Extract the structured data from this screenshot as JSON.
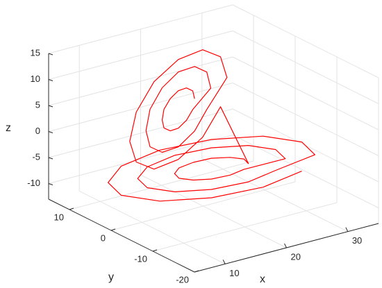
{
  "chart_data": {
    "type": "line3d",
    "xlabel": "x",
    "ylabel": "y",
    "zlabel": "z",
    "xlim": [
      5,
      35
    ],
    "ylim": [
      -20,
      15
    ],
    "zlim": [
      -13,
      15
    ],
    "xticks": [
      10,
      20,
      30
    ],
    "yticks": [
      -20,
      -10,
      0,
      10
    ],
    "zticks": [
      -10,
      -5,
      0,
      5,
      10,
      15
    ],
    "grid": true,
    "color": "#ff0000",
    "x": [
      22,
      21.5,
      20,
      18,
      16,
      14.5,
      14,
      14.5,
      16,
      18,
      20,
      21.5,
      26,
      25,
      22,
      18,
      14,
      11,
      10,
      11,
      14,
      18,
      22,
      25,
      30,
      28.4,
      24,
      18,
      12,
      7.6,
      6,
      7.6,
      12,
      18,
      24,
      28.4,
      25,
      24.4,
      22.5,
      20,
      17.5,
      15.6,
      15,
      15.6,
      17.5,
      20,
      22.5,
      24.4,
      30,
      28.7,
      25,
      20,
      15,
      11.3,
      10,
      11.3,
      15,
      20,
      25,
      28.7,
      34,
      32.2,
      27,
      20,
      13,
      7.8,
      6,
      7.8,
      13,
      20,
      27,
      32.2
    ],
    "y": [
      5,
      4.7,
      4,
      3,
      2,
      1.3,
      1,
      1.3,
      2,
      3,
      4,
      4.7,
      7,
      6.5,
      5,
      3,
      1,
      -0.5,
      -1,
      -0.5,
      1,
      3,
      5,
      6.5,
      9,
      8.2,
      6,
      3,
      0,
      -2.2,
      -3,
      -2.2,
      0,
      3,
      6,
      8.2,
      -3.5,
      -3.3,
      -2.8,
      -2,
      -1.3,
      -0.7,
      -0.5,
      -0.7,
      -1.3,
      -2,
      -2.8,
      -3.3,
      -5,
      -4.6,
      -3.5,
      -2,
      -0.5,
      0.6,
      1,
      0.6,
      -0.5,
      -2,
      -3.5,
      -4.6,
      -6.2,
      -5.7,
      -4.1,
      -2,
      0.1,
      1.7,
      2.2,
      1.7,
      0.1,
      -2,
      -4.1,
      -5.7
    ],
    "z": [
      5,
      6.8,
      8.1,
      8.6,
      8.1,
      6.8,
      5,
      3.2,
      1.9,
      1.4,
      1.9,
      3.2,
      5,
      8.6,
      11.2,
      12.2,
      11.2,
      8.6,
      5,
      1.4,
      -1.2,
      -2.2,
      -1.2,
      1.4,
      5,
      9.8,
      13.4,
      14.6,
      13.4,
      9.8,
      5,
      0.2,
      -3.4,
      -4.6,
      -3.4,
      0.2,
      -5,
      -4,
      -3.3,
      -3,
      -3.3,
      -4,
      -5,
      -6,
      -6.7,
      -7,
      -6.7,
      -6,
      -5,
      -3,
      -1.5,
      -1,
      -1.5,
      -3,
      -5,
      -7,
      -8.5,
      -9,
      -8.5,
      -7,
      -5,
      -2.2,
      -0.1,
      0.6,
      -0.1,
      -2.2,
      -5,
      -7.8,
      -9.9,
      -10.6,
      -9.9,
      -7.8
    ]
  }
}
